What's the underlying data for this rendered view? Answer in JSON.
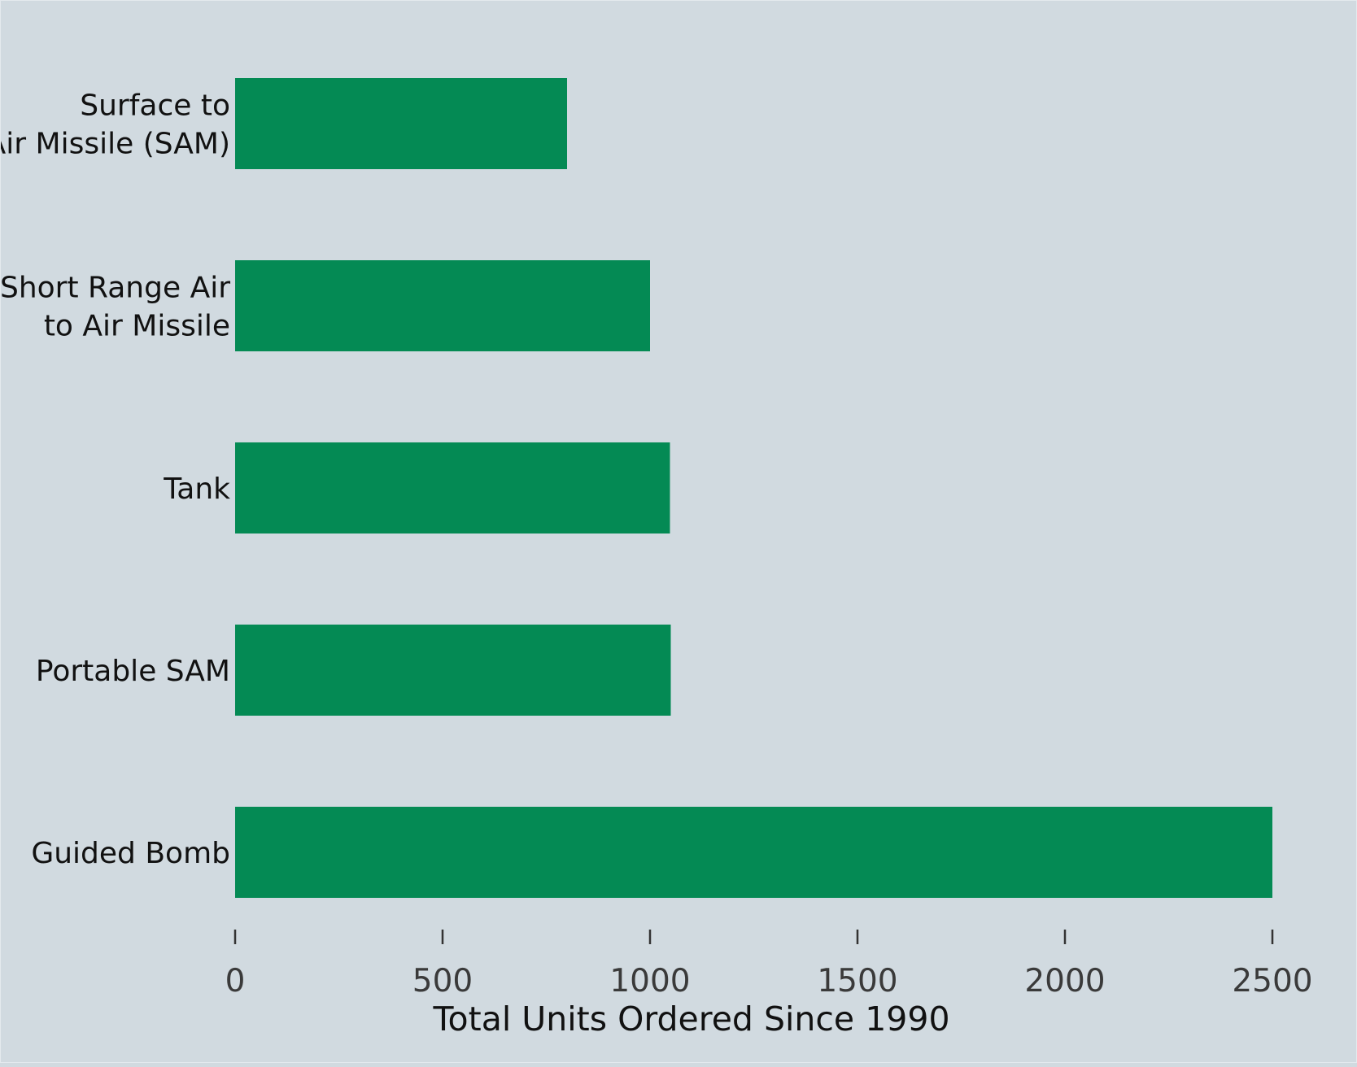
{
  "chart_data": {
    "type": "bar",
    "orientation": "horizontal",
    "categories": [
      [
        "Surface to",
        "Air Missile (SAM)"
      ],
      [
        "Short Range Air",
        "to Air Missile"
      ],
      [
        "Tank"
      ],
      [
        "Portable SAM"
      ],
      [
        "Guided Bomb"
      ]
    ],
    "values": [
      800,
      1000,
      1048,
      1050,
      2500
    ],
    "xlabel": "Total Units Ordered Since 1990",
    "ylabel": "",
    "xlim": [
      0,
      2500
    ],
    "xticks": [
      0,
      500,
      1000,
      1500,
      2000,
      2500
    ],
    "xtick_labels": [
      "0",
      "500",
      "1000",
      "1500",
      "2000",
      "2500"
    ],
    "grid": false,
    "legend": "none",
    "colors": {
      "bar": "#048a54",
      "background": "#d1dae0",
      "text": "#111111",
      "tick_text": "#3a3a3a",
      "tick_mark": "#333333"
    }
  }
}
